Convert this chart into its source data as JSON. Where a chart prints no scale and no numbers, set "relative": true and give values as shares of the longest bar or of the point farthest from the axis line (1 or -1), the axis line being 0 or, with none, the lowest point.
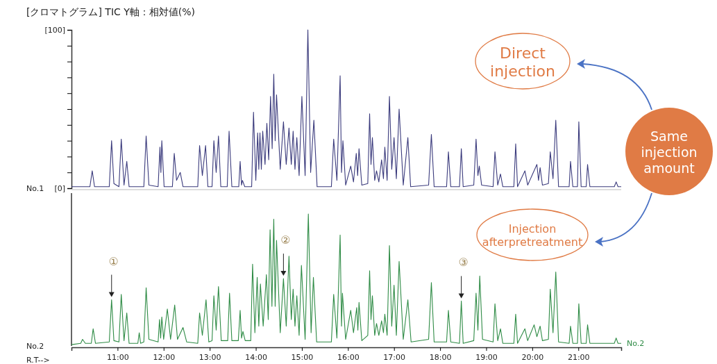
{
  "chart_data": [
    {
      "type": "line",
      "title": "[クロマトグラム]  TIC  Y軸：相対値(%)",
      "ylabel": "No.1",
      "tick_labels": "y",
      "xlim": [
        10.0,
        21.93
      ],
      "ylim": [
        0,
        100
      ],
      "yticks": [
        {
          "value": 0,
          "label": "[0]"
        },
        {
          "value": 10,
          "label": null
        },
        {
          "value": 20,
          "label": null
        },
        {
          "value": 30,
          "label": null
        },
        {
          "value": 40,
          "label": null
        },
        {
          "value": 50,
          "label": null
        },
        {
          "value": 60,
          "label": null
        },
        {
          "value": 70,
          "label": null
        },
        {
          "value": 80,
          "label": null
        },
        {
          "value": 90,
          "label": null
        },
        {
          "value": 100,
          "label": "[100]"
        }
      ],
      "x": [
        10.0,
        10.4,
        10.45,
        10.5,
        10.82,
        10.87,
        10.92,
        11.03,
        11.08,
        11.14,
        11.2,
        11.25,
        11.57,
        11.62,
        11.68,
        11.88,
        11.92,
        11.94,
        11.96,
        12.01,
        12.19,
        12.23,
        12.28,
        12.36,
        12.42,
        12.74,
        12.78,
        12.84,
        12.91,
        12.96,
        13.05,
        13.09,
        13.14,
        13.19,
        13.24,
        13.38,
        13.42,
        13.48,
        13.63,
        13.66,
        13.69,
        13.71,
        13.76,
        13.91,
        13.95,
        14.0,
        14.04,
        14.065,
        14.09,
        14.12,
        14.15,
        14.2,
        14.24,
        14.28,
        14.32,
        14.355,
        14.39,
        14.42,
        14.45,
        14.53,
        14.6,
        14.66,
        14.72,
        14.77,
        14.81,
        14.85,
        14.89,
        14.94,
        15.0,
        15.07,
        15.13,
        15.19,
        15.26,
        15.33,
        15.64,
        15.69,
        15.76,
        15.83,
        15.86,
        15.89,
        15.95,
        16.06,
        16.12,
        16.18,
        16.21,
        16.24,
        16.3,
        16.43,
        16.47,
        16.5,
        16.53,
        16.58,
        16.62,
        16.67,
        16.73,
        16.77,
        16.8,
        16.85,
        16.9,
        16.95,
        17.0,
        17.05,
        17.11,
        17.2,
        17.3,
        17.36,
        17.75,
        17.81,
        17.87,
        18.14,
        18.18,
        18.23,
        18.42,
        18.46,
        18.5,
        18.73,
        18.78,
        18.82,
        18.85,
        18.9,
        19.15,
        19.19,
        19.25,
        19.31,
        19.36,
        19.6,
        19.64,
        19.68,
        19.84,
        19.9,
        20.1,
        20.135,
        20.17,
        20.22,
        20.35,
        20.39,
        20.45,
        20.51,
        20.57,
        20.8,
        20.83,
        20.88,
        20.98,
        21.01,
        21.06,
        21.17,
        21.2,
        21.25,
        21.78,
        21.82,
        21.86,
        21.93
      ],
      "series": [
        {
          "color": "#3a3a7c",
          "values": [
            1,
            1,
            11,
            1,
            1,
            30,
            3,
            1,
            31,
            2,
            17,
            1,
            1,
            33,
            2,
            1,
            26,
            10,
            30,
            1,
            1,
            22,
            5,
            10,
            1,
            1,
            27,
            8,
            27,
            1,
            1,
            30,
            10,
            33,
            1,
            1,
            36,
            1,
            1,
            17,
            2,
            5,
            1,
            1,
            48,
            5,
            35,
            12,
            35,
            12,
            36,
            15,
            41,
            18,
            58,
            25,
            72,
            30,
            59,
            12,
            42,
            15,
            38,
            15,
            36,
            12,
            32,
            8,
            58,
            8,
            100,
            10,
            43,
            1,
            1,
            31,
            5,
            71,
            10,
            30,
            2,
            14,
            4,
            22,
            8,
            25,
            2,
            3,
            47,
            15,
            32,
            5,
            11,
            4,
            18,
            6,
            26,
            5,
            58,
            12,
            32,
            6,
            50,
            2,
            32,
            1,
            2,
            34,
            1,
            1,
            23,
            1,
            1,
            25,
            1,
            2,
            31,
            8,
            14,
            2,
            1,
            23,
            2,
            9,
            1,
            1,
            28,
            1,
            11,
            2,
            15,
            5,
            13,
            2,
            3,
            23,
            6,
            43,
            1,
            1,
            17,
            1,
            1,
            42,
            1,
            1,
            15,
            1,
            1,
            4,
            1,
            1
          ]
        }
      ],
      "annotations": [
        "Direct injection",
        "Same injection amount",
        "Injection afterpretreatment"
      ]
    },
    {
      "type": "line",
      "ylabel": "No.2",
      "xlabel": "R.T-->",
      "relative": true,
      "tick_labels": "x",
      "xlim": [
        10.0,
        21.93
      ],
      "xticks": [
        {
          "value": 11,
          "label": "11:00"
        },
        {
          "value": 12,
          "label": "12:00"
        },
        {
          "value": 13,
          "label": "13:00"
        },
        {
          "value": 14,
          "label": "14:00"
        },
        {
          "value": 15,
          "label": "15:00"
        },
        {
          "value": 16,
          "label": "16:00"
        },
        {
          "value": 17,
          "label": "17:00"
        },
        {
          "value": 18,
          "label": "18:00"
        },
        {
          "value": 19,
          "label": "19:00"
        },
        {
          "value": 20,
          "label": "20:00"
        },
        {
          "value": 21,
          "label": "21:00"
        }
      ],
      "x": [
        10.0,
        10.2,
        10.24,
        10.3,
        10.43,
        10.47,
        10.52,
        10.82,
        10.87,
        10.92,
        11.03,
        11.08,
        11.14,
        11.2,
        11.25,
        11.44,
        11.47,
        11.5,
        11.57,
        11.62,
        11.68,
        11.88,
        11.91,
        11.935,
        11.96,
        12.0,
        12.08,
        12.15,
        12.24,
        12.3,
        12.42,
        12.5,
        12.74,
        12.78,
        12.84,
        12.92,
        12.98,
        13.05,
        13.09,
        13.14,
        13.19,
        13.25,
        13.39,
        13.43,
        13.48,
        13.62,
        13.66,
        13.69,
        13.72,
        13.77,
        13.89,
        13.93,
        13.98,
        14.03,
        14.065,
        14.1,
        14.16,
        14.23,
        14.27,
        14.31,
        14.35,
        14.39,
        14.42,
        14.45,
        14.53,
        14.6,
        14.66,
        14.72,
        14.77,
        14.81,
        14.85,
        14.89,
        14.94,
        14.99,
        15.07,
        15.14,
        15.2,
        15.25,
        15.32,
        15.64,
        15.69,
        15.76,
        15.83,
        15.86,
        15.88,
        15.95,
        16.06,
        16.12,
        16.19,
        16.215,
        16.24,
        16.3,
        16.43,
        16.47,
        16.5,
        16.53,
        16.58,
        16.62,
        16.67,
        16.73,
        16.77,
        16.8,
        16.85,
        16.9,
        16.95,
        17.0,
        17.05,
        17.11,
        17.2,
        17.3,
        17.37,
        17.75,
        17.81,
        17.87,
        18.14,
        18.18,
        18.23,
        18.42,
        18.46,
        18.5,
        18.73,
        18.78,
        18.82,
        18.86,
        18.92,
        19.15,
        19.19,
        19.25,
        19.31,
        19.36,
        19.6,
        19.64,
        19.68,
        19.84,
        19.9,
        20.04,
        20.1,
        20.17,
        20.22,
        20.35,
        20.39,
        20.45,
        20.51,
        20.57,
        20.8,
        20.83,
        20.88,
        20.98,
        21.01,
        21.06,
        21.17,
        21.2,
        21.25,
        21.78,
        21.82,
        21.86,
        21.93
      ],
      "series": [
        {
          "name": "No.2",
          "color": "#2e8b45",
          "values": [
            0.01,
            0.02,
            0.05,
            0.02,
            0.02,
            0.13,
            0.02,
            0.03,
            0.35,
            0.04,
            0.03,
            0.39,
            0.04,
            0.25,
            0.02,
            0.02,
            0.1,
            0.02,
            0.03,
            0.44,
            0.05,
            0.03,
            0.2,
            0.06,
            0.22,
            0.05,
            0.28,
            0.05,
            0.31,
            0.05,
            0.14,
            0.03,
            0.02,
            0.25,
            0.08,
            0.35,
            0.03,
            0.04,
            0.38,
            0.12,
            0.45,
            0.04,
            0.04,
            0.4,
            0.04,
            0.04,
            0.27,
            0.06,
            0.11,
            0.04,
            0.04,
            0.62,
            0.1,
            0.52,
            0.15,
            0.47,
            0.15,
            0.54,
            0.2,
            0.88,
            0.3,
            0.96,
            0.3,
            0.8,
            0.1,
            0.51,
            0.15,
            0.68,
            0.2,
            0.43,
            0.15,
            0.38,
            0.08,
            0.61,
            0.05,
            1,
            0.1,
            0.52,
            0.03,
            0.03,
            0.39,
            0.06,
            0.84,
            0.15,
            0.4,
            0.05,
            0.27,
            0.1,
            0.29,
            0.12,
            0.33,
            0.04,
            0.08,
            0.57,
            0.2,
            0.38,
            0.08,
            0.17,
            0.08,
            0.19,
            0.1,
            0.24,
            0.08,
            0.76,
            0.15,
            0.46,
            0.08,
            0.64,
            0.05,
            0.35,
            0.03,
            0.05,
            0.48,
            0.03,
            0.03,
            0.27,
            0.03,
            0.02,
            0.34,
            0.02,
            0.04,
            0.4,
            0.12,
            0.53,
            0.05,
            0.03,
            0.32,
            0.04,
            0.13,
            0.02,
            0.02,
            0.24,
            0.02,
            0.13,
            0.04,
            0.16,
            0.07,
            0.15,
            0.04,
            0.05,
            0.43,
            0.1,
            0.56,
            0.03,
            0.02,
            0.15,
            0.02,
            0.02,
            0.32,
            0.02,
            0.02,
            0.16,
            0.02,
            0.02,
            0.06,
            0.02,
            0.02
          ]
        }
      ],
      "annotations": [
        {
          "text": "①",
          "x": 10.87,
          "y": 0.35
        },
        {
          "text": "②",
          "x": 14.6,
          "y": 0.51
        },
        {
          "text": "③",
          "x": 18.46,
          "y": 0.34
        }
      ]
    }
  ]
}
